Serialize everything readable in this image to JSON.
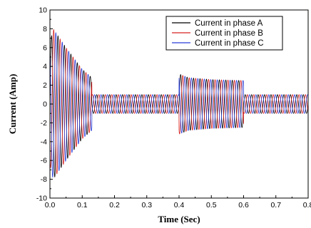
{
  "chart_data": {
    "type": "line",
    "xlabel": "Time (Sec)",
    "ylabel": "Current (Amp)",
    "xlim": [
      0.0,
      0.8
    ],
    "ylim": [
      -10,
      10
    ],
    "x_ticks": [
      "0.0",
      "0.1",
      "0.2",
      "0.3",
      "0.4",
      "0.5",
      "0.6",
      "0.7",
      "0.8"
    ],
    "y_ticks": [
      "10",
      "8",
      "6",
      "4",
      "2",
      "0",
      "-2",
      "-4",
      "-6",
      "-8",
      "-10"
    ],
    "grid": false,
    "legend_position": "top-right",
    "frequency_hz": 50,
    "series": [
      {
        "name": "Current in phase A",
        "color": "#000000",
        "phase_deg": 0
      },
      {
        "name": "Current in phase B",
        "color": "#d62020",
        "phase_deg": -120
      },
      {
        "name": "Current in phase C",
        "color": "#2a3fd8",
        "phase_deg": 120
      }
    ],
    "envelope_amplitude": {
      "time": [
        0.0,
        0.01,
        0.05,
        0.1,
        0.13,
        0.13,
        0.4,
        0.4,
        0.43,
        0.5,
        0.6,
        0.6,
        0.8
      ],
      "amplitude": [
        6.5,
        8.0,
        6.0,
        3.7,
        2.8,
        1.0,
        1.0,
        3.2,
        2.8,
        2.6,
        2.5,
        1.0,
        1.0
      ]
    }
  }
}
